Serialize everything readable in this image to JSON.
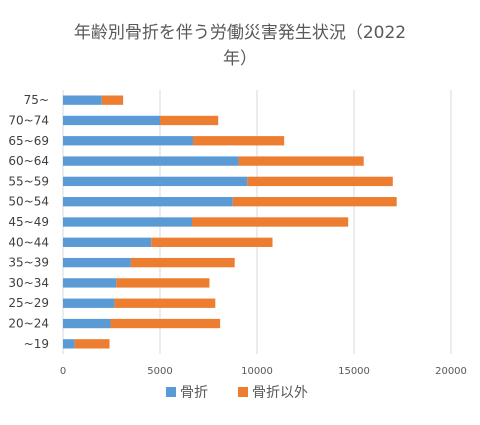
{
  "chart_data": {
    "type": "bar",
    "orientation": "horizontal",
    "stacked": true,
    "title_line1": "年齢別骨折を伴う労働災害発生状況（2022",
    "title_line2": "年）",
    "categories": [
      "~19",
      "20~24",
      "25~29",
      "30~34",
      "35~39",
      "40~44",
      "45~49",
      "50~54",
      "55~59",
      "60~64",
      "65~69",
      "70~74",
      "75~"
    ],
    "series": [
      {
        "name": "骨折",
        "color": "#5b9bd5",
        "values": [
          600,
          2450,
          2650,
          2750,
          3500,
          4550,
          6650,
          8750,
          9500,
          9050,
          6700,
          5000,
          2000
        ]
      },
      {
        "name": "骨折以外",
        "color": "#ed7d31",
        "values": [
          1800,
          5650,
          5200,
          4800,
          5350,
          6250,
          8050,
          8450,
          7500,
          6450,
          4700,
          3000,
          1100
        ]
      }
    ],
    "xticks": [
      "0",
      "5000",
      "10000",
      "15000",
      "20000"
    ],
    "xlim": [
      0,
      20000
    ],
    "grid": true,
    "legend_position": "bottom"
  }
}
